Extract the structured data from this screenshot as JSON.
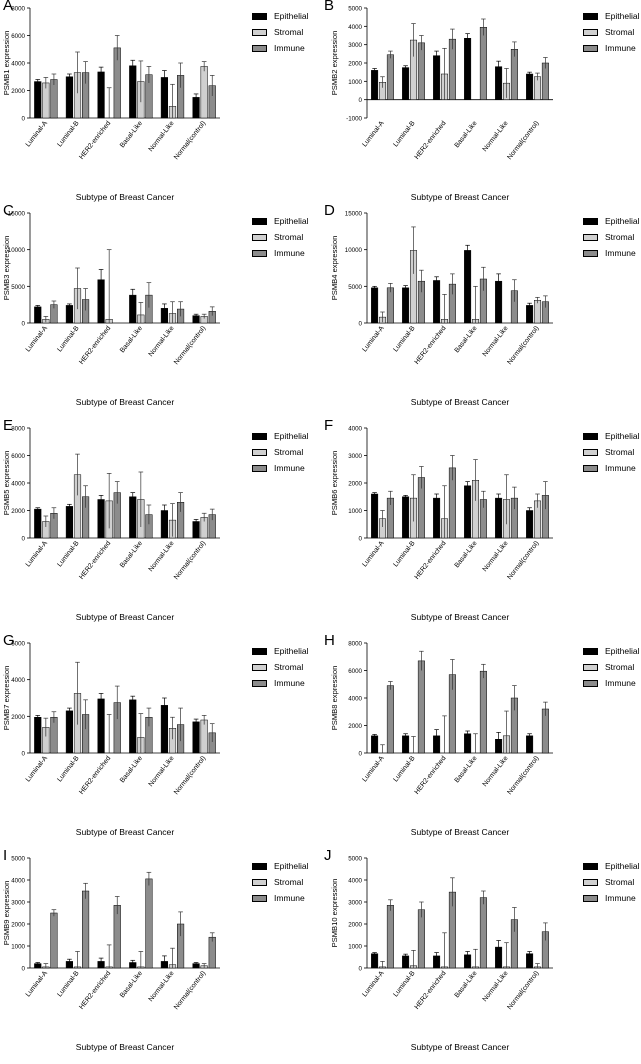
{
  "chart_data": [
    {
      "letter": "A",
      "type": "bar",
      "ylabel": "PSMB1 expression",
      "xlabel": "Subtype of Breast Cancer",
      "ylim": [
        0,
        8000
      ],
      "ticks": [
        0,
        2000,
        4000,
        6000,
        8000
      ],
      "categories": [
        "Luminal-A",
        "Luminal-B",
        "HER2-enriched",
        "Basal-Like",
        "Normal-Like",
        "Normal(control)"
      ],
      "series": [
        {
          "name": "Epithelial",
          "values": [
            2650,
            3000,
            3350,
            3800,
            2950,
            1500
          ],
          "errors": [
            150,
            200,
            350,
            400,
            500,
            250
          ]
        },
        {
          "name": "Stromal",
          "values": [
            2550,
            3300,
            0,
            2650,
            850,
            3750
          ],
          "errors": [
            400,
            1500,
            2200,
            1500,
            1600,
            350
          ]
        },
        {
          "name": "Immune",
          "values": [
            2800,
            3300,
            5100,
            3150,
            3100,
            2350
          ],
          "errors": [
            400,
            800,
            900,
            600,
            900,
            750
          ]
        }
      ]
    },
    {
      "letter": "B",
      "type": "bar",
      "ylabel": "PSMB2 expression",
      "xlabel": "Subtype of Breast Cancer",
      "ylim": [
        -1000,
        5000
      ],
      "ticks": [
        -1000,
        0,
        1000,
        2000,
        3000,
        4000,
        5000
      ],
      "categories": [
        "Luminal-A",
        "Luminal-B",
        "HER2-enriched",
        "Basal-Like",
        "Normal-Like",
        "Normal(control)"
      ],
      "series": [
        {
          "name": "Epithelial",
          "values": [
            1600,
            1750,
            2400,
            3350,
            1800,
            1400
          ],
          "errors": [
            100,
            100,
            250,
            250,
            300,
            100
          ]
        },
        {
          "name": "Stromal",
          "values": [
            950,
            3250,
            1400,
            0,
            900,
            1250
          ],
          "errors": [
            300,
            900,
            1400,
            0,
            800,
            200
          ]
        },
        {
          "name": "Immune",
          "values": [
            2450,
            3100,
            3300,
            3950,
            2750,
            2000
          ],
          "errors": [
            200,
            400,
            550,
            450,
            400,
            300
          ]
        }
      ]
    },
    {
      "letter": "C",
      "type": "bar",
      "ylabel": "PSMB3 expression",
      "xlabel": "Subtype of Breast Cancer",
      "ylim": [
        0,
        15000
      ],
      "ticks": [
        0,
        5000,
        10000,
        15000
      ],
      "categories": [
        "Luminal-A",
        "Luminal-B",
        "HER2-enriched",
        "Basal-Like",
        "Normal-Like",
        "Normal(control)"
      ],
      "series": [
        {
          "name": "Epithelial",
          "values": [
            2200,
            2400,
            5900,
            3800,
            2000,
            1000
          ],
          "errors": [
            200,
            200,
            1400,
            800,
            600,
            200
          ]
        },
        {
          "name": "Stromal",
          "values": [
            500,
            4700,
            500,
            1100,
            1300,
            900
          ],
          "errors": [
            400,
            2800,
            9500,
            1700,
            1600,
            300
          ]
        },
        {
          "name": "Immune",
          "values": [
            2500,
            3200,
            0,
            3800,
            1900,
            1600
          ],
          "errors": [
            500,
            1500,
            0,
            1700,
            1000,
            600
          ]
        }
      ]
    },
    {
      "letter": "D",
      "type": "bar",
      "ylabel": "PSMB4 expression",
      "xlabel": "Subtype of Breast Cancer",
      "ylim": [
        0,
        15000
      ],
      "ticks": [
        0,
        5000,
        10000,
        15000
      ],
      "categories": [
        "Luminal-A",
        "Luminal-B",
        "HER2-enriched",
        "Basal-Like",
        "Normal-Like",
        "Normal(control)"
      ],
      "series": [
        {
          "name": "Epithelial",
          "values": [
            4800,
            4800,
            5800,
            9900,
            5700,
            2400
          ],
          "errors": [
            200,
            300,
            500,
            700,
            1000,
            300
          ]
        },
        {
          "name": "Stromal",
          "values": [
            800,
            9900,
            500,
            500,
            0,
            3100
          ],
          "errors": [
            700,
            3200,
            3400,
            4500,
            0,
            400
          ]
        },
        {
          "name": "Immune",
          "values": [
            4800,
            5700,
            5300,
            6000,
            4400,
            2900
          ],
          "errors": [
            600,
            1500,
            1400,
            1600,
            1500,
            800
          ]
        }
      ]
    },
    {
      "letter": "E",
      "type": "bar",
      "ylabel": "PSMB5 expression",
      "xlabel": "Subtype of Breast Cancer",
      "ylim": [
        0,
        8000
      ],
      "ticks": [
        0,
        2000,
        4000,
        6000,
        8000
      ],
      "categories": [
        "Luminal-A",
        "Luminal-B",
        "HER2-enriched",
        "Basal-Like",
        "Normal-Like",
        "Normal(control)"
      ],
      "series": [
        {
          "name": "Epithelial",
          "values": [
            2100,
            2300,
            2800,
            3000,
            2000,
            1200
          ],
          "errors": [
            100,
            150,
            300,
            300,
            400,
            150
          ]
        },
        {
          "name": "Stromal",
          "values": [
            1200,
            4600,
            2700,
            2800,
            1300,
            1500
          ],
          "errors": [
            400,
            1500,
            2000,
            2000,
            1200,
            300
          ]
        },
        {
          "name": "Immune",
          "values": [
            1800,
            3000,
            3300,
            1700,
            2600,
            1700
          ],
          "errors": [
            400,
            800,
            800,
            700,
            700,
            400
          ]
        }
      ]
    },
    {
      "letter": "F",
      "type": "bar",
      "ylabel": "PSMB6 expression",
      "xlabel": "Subtype of Breast Cancer",
      "ylim": [
        0,
        4000
      ],
      "ticks": [
        0,
        1000,
        2000,
        3000,
        4000
      ],
      "categories": [
        "Luminal-A",
        "Luminal-B",
        "HER2-enriched",
        "Basal-Like",
        "Normal-Like",
        "Normal(control)"
      ],
      "series": [
        {
          "name": "Epithelial",
          "values": [
            1600,
            1500,
            1450,
            1900,
            1450,
            1000
          ],
          "errors": [
            50,
            50,
            150,
            150,
            150,
            100
          ]
        },
        {
          "name": "Stromal",
          "values": [
            700,
            1450,
            700,
            2100,
            1400,
            1350
          ],
          "errors": [
            300,
            850,
            1200,
            750,
            900,
            250
          ]
        },
        {
          "name": "Immune",
          "values": [
            1450,
            2200,
            2550,
            1400,
            1450,
            1550
          ],
          "errors": [
            250,
            400,
            450,
            300,
            400,
            500
          ]
        }
      ]
    },
    {
      "letter": "G",
      "type": "bar",
      "ylabel": "PSMB7 expression",
      "xlabel": "Subtype of Breast Cancer",
      "ylim": [
        0,
        6000
      ],
      "ticks": [
        0,
        2000,
        4000,
        6000
      ],
      "categories": [
        "Luminal-A",
        "Luminal-B",
        "HER2-enriched",
        "Basal-Like",
        "Normal-Like",
        "Normal(control)"
      ],
      "series": [
        {
          "name": "Epithelial",
          "values": [
            1950,
            2300,
            2950,
            2900,
            2600,
            1700
          ],
          "errors": [
            100,
            150,
            300,
            200,
            400,
            150
          ]
        },
        {
          "name": "Stromal",
          "values": [
            1400,
            3250,
            0,
            850,
            1350,
            1800
          ],
          "errors": [
            500,
            1700,
            2100,
            1300,
            600,
            250
          ]
        },
        {
          "name": "Immune",
          "values": [
            1950,
            2100,
            2750,
            1950,
            1550,
            1100
          ],
          "errors": [
            300,
            800,
            900,
            500,
            900,
            500
          ]
        }
      ]
    },
    {
      "letter": "H",
      "type": "bar",
      "ylabel": "PSMB8 expression",
      "xlabel": "Subtype of Breast Cancer",
      "ylim": [
        0,
        8000
      ],
      "ticks": [
        0,
        2000,
        4000,
        6000,
        8000
      ],
      "categories": [
        "Luminal-A",
        "Luminal-B",
        "HER2-enriched",
        "Basal-Like",
        "Normal-Like",
        "Normal(control)"
      ],
      "series": [
        {
          "name": "Epithelial",
          "values": [
            1250,
            1250,
            1250,
            1400,
            1000,
            1250
          ],
          "errors": [
            100,
            150,
            450,
            200,
            500,
            150
          ]
        },
        {
          "name": "Stromal",
          "values": [
            0,
            0,
            0,
            0,
            1250,
            0
          ],
          "errors": [
            600,
            1200,
            2700,
            1400,
            1800,
            0
          ]
        },
        {
          "name": "Immune",
          "values": [
            4900,
            6700,
            5700,
            5950,
            4000,
            3200
          ],
          "errors": [
            300,
            700,
            1100,
            500,
            900,
            500
          ]
        }
      ]
    },
    {
      "letter": "I",
      "type": "bar",
      "ylabel": "PSMB9 expression",
      "xlabel": "Subtype of Breast Cancer",
      "ylim": [
        0,
        5000
      ],
      "ticks": [
        0,
        1000,
        2000,
        3000,
        4000,
        5000
      ],
      "categories": [
        "Luminal-A",
        "Luminal-B",
        "HER2-enriched",
        "Basal-Like",
        "Normal-Like",
        "Normal(control)"
      ],
      "series": [
        {
          "name": "Epithelial",
          "values": [
            200,
            300,
            300,
            250,
            300,
            200
          ],
          "errors": [
            50,
            100,
            150,
            100,
            250,
            50
          ]
        },
        {
          "name": "Stromal",
          "values": [
            50,
            50,
            50,
            50,
            150,
            100
          ],
          "errors": [
            150,
            700,
            1000,
            700,
            750,
            100
          ]
        },
        {
          "name": "Immune",
          "values": [
            2500,
            3500,
            2850,
            4050,
            2000,
            1400
          ],
          "errors": [
            150,
            350,
            400,
            300,
            550,
            200
          ]
        }
      ]
    },
    {
      "letter": "J",
      "type": "bar",
      "ylabel": "PSMB10 expression",
      "xlabel": "Subtype of Breast Cancer",
      "ylim": [
        0,
        5000
      ],
      "ticks": [
        0,
        1000,
        2000,
        3000,
        4000,
        5000
      ],
      "categories": [
        "Luminal-A",
        "Luminal-B",
        "HER2-enriched",
        "Basal-Like",
        "Normal-Like",
        "Normal(control)"
      ],
      "series": [
        {
          "name": "Epithelial",
          "values": [
            650,
            550,
            550,
            600,
            950,
            650
          ],
          "errors": [
            50,
            80,
            150,
            150,
            300,
            100
          ]
        },
        {
          "name": "Stromal",
          "values": [
            50,
            100,
            50,
            50,
            50,
            50
          ],
          "errors": [
            250,
            700,
            1550,
            800,
            1100,
            150
          ]
        },
        {
          "name": "Immune",
          "values": [
            2850,
            2650,
            3450,
            3200,
            2200,
            1650
          ],
          "errors": [
            250,
            350,
            650,
            300,
            550,
            400
          ]
        }
      ]
    }
  ],
  "colors": {
    "Epithelial": "#000000",
    "Stromal": "#d0d0d0",
    "Immune": "#8c8c8c",
    "axis": "#000000"
  }
}
